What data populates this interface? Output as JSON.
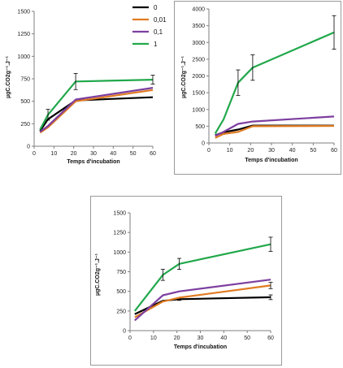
{
  "series_colors": {
    "0": "#000000",
    "0,01": "#e07b22",
    "0,1": "#7d3fa0",
    "1": "#21a84b"
  },
  "chart_data": [
    {
      "type": "line",
      "title": "",
      "xlabel": "Temps d'incubation",
      "ylabel": "µgC.CO2g⁻¹.J⁻¹",
      "xlim": [
        0,
        60
      ],
      "ylim": [
        0,
        1500
      ],
      "xticks": [
        "0",
        "10",
        "20",
        "30",
        "40",
        "50",
        "60"
      ],
      "yticks": [
        "0",
        "250",
        "500",
        "750",
        "1000",
        "1250",
        "1500"
      ],
      "legend": {
        "placement": "top-right",
        "entries": [
          "0",
          "0,01",
          "0,1",
          "1"
        ]
      },
      "series": [
        {
          "name": "0",
          "color": "#000000",
          "x": [
            3,
            7,
            21,
            60
          ],
          "y": [
            170,
            300,
            510,
            545
          ]
        },
        {
          "name": "0,01",
          "color": "#e07b22",
          "x": [
            3,
            7,
            21,
            60
          ],
          "y": [
            150,
            210,
            500,
            625
          ]
        },
        {
          "name": "0,1",
          "color": "#7d3fa0",
          "x": [
            3,
            7,
            21,
            60
          ],
          "y": [
            160,
            225,
            520,
            650
          ]
        },
        {
          "name": "1",
          "color": "#21a84b",
          "x": [
            3,
            7,
            21,
            60
          ],
          "y": [
            185,
            350,
            720,
            740
          ],
          "error": [
            0,
            60,
            90,
            50
          ]
        }
      ]
    },
    {
      "type": "line",
      "title": "",
      "xlabel": "Temps d'incubation",
      "ylabel": "µgC.CO2g⁻¹.J⁻¹",
      "xlim": [
        0,
        60
      ],
      "ylim": [
        0,
        4000
      ],
      "xticks": [
        "0",
        "10",
        "20",
        "30",
        "40",
        "50",
        "60"
      ],
      "yticks": [
        "0",
        "500",
        "1000",
        "1500",
        "2000",
        "2500",
        "3000",
        "3500",
        "4000"
      ],
      "legend": null,
      "series": [
        {
          "name": "0",
          "color": "#000000",
          "x": [
            3,
            7,
            14,
            21,
            60
          ],
          "y": [
            230,
            320,
            400,
            520,
            520
          ]
        },
        {
          "name": "0,01",
          "color": "#e07b22",
          "x": [
            3,
            7,
            14,
            21,
            60
          ],
          "y": [
            150,
            270,
            330,
            500,
            510
          ]
        },
        {
          "name": "0,1",
          "color": "#7d3fa0",
          "x": [
            3,
            7,
            14,
            21,
            60
          ],
          "y": [
            210,
            330,
            570,
            640,
            790
          ]
        },
        {
          "name": "1",
          "color": "#21a84b",
          "x": [
            3,
            7,
            14,
            21,
            60
          ],
          "y": [
            280,
            700,
            1800,
            2250,
            3300
          ],
          "error": [
            0,
            0,
            380,
            380,
            500
          ]
        }
      ]
    },
    {
      "type": "line",
      "title": "",
      "xlabel": "Temps d'incubation",
      "ylabel": "µgC.CO2g⁻¹.J⁻¹",
      "xlim": [
        0,
        60
      ],
      "ylim": [
        0,
        1500
      ],
      "xticks": [
        "0",
        "10",
        "20",
        "30",
        "40",
        "50",
        "60"
      ],
      "yticks": [
        "0",
        "250",
        "500",
        "750",
        "1000",
        "1250",
        "1500"
      ],
      "legend": null,
      "series": [
        {
          "name": "0",
          "color": "#000000",
          "x": [
            2,
            14,
            21,
            60
          ],
          "y": [
            210,
            380,
            400,
            425
          ],
          "error": [
            0,
            0,
            15,
            30
          ]
        },
        {
          "name": "0,01",
          "color": "#e07b22",
          "x": [
            2,
            14,
            21,
            60
          ],
          "y": [
            170,
            370,
            420,
            575
          ],
          "error": [
            0,
            0,
            0,
            40
          ]
        },
        {
          "name": "0,1",
          "color": "#7d3fa0",
          "x": [
            2,
            14,
            21,
            60
          ],
          "y": [
            130,
            450,
            500,
            650
          ]
        },
        {
          "name": "1",
          "color": "#21a84b",
          "x": [
            2,
            14,
            21,
            60
          ],
          "y": [
            250,
            710,
            850,
            1100
          ],
          "error": [
            0,
            70,
            70,
            90
          ]
        }
      ]
    }
  ]
}
